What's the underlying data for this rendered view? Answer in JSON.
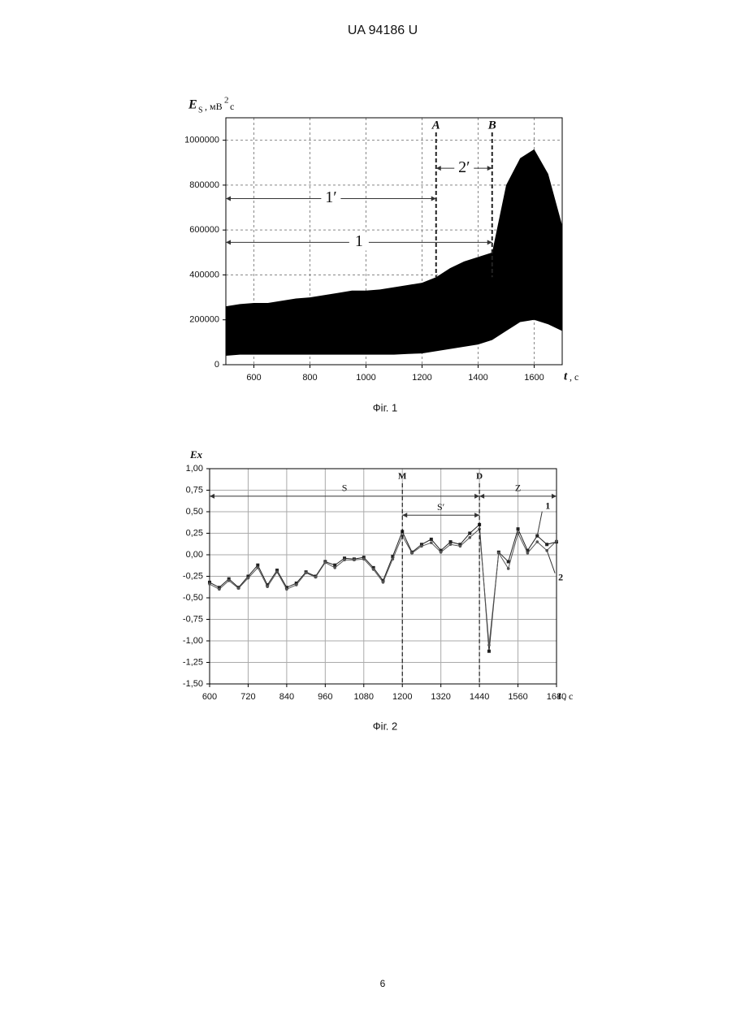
{
  "header": "UA   94186   U",
  "page_number": "6",
  "chart_data": [
    {
      "type": "band",
      "title": "Фіг. 1",
      "ylabel": "E",
      "ylabel_sub": "S",
      "ylabel_unit": ", мВ",
      "ylabel_sup": "2",
      "ylabel_unit2": "с",
      "xlabel": "t",
      "xlabel_unit": ", с",
      "x": [
        500,
        550,
        600,
        650,
        700,
        750,
        800,
        850,
        900,
        950,
        1000,
        1050,
        1100,
        1150,
        1200,
        1250,
        1300,
        1350,
        1400,
        1450,
        1500,
        1550,
        1600,
        1650,
        1700
      ],
      "upper": [
        260000,
        270000,
        275000,
        275000,
        285000,
        295000,
        300000,
        310000,
        320000,
        330000,
        330000,
        335000,
        345000,
        355000,
        365000,
        390000,
        430000,
        460000,
        480000,
        500000,
        800000,
        920000,
        960000,
        850000,
        620000
      ],
      "lower": [
        40000,
        45000,
        45000,
        45000,
        45000,
        45000,
        45000,
        45000,
        45000,
        45000,
        45000,
        45000,
        45000,
        48000,
        50000,
        60000,
        70000,
        80000,
        90000,
        110000,
        150000,
        190000,
        200000,
        180000,
        150000
      ],
      "color": "#000000",
      "xlim": [
        500,
        1700
      ],
      "ylim": [
        0,
        1100000
      ],
      "xticks": [
        600,
        800,
        1000,
        1200,
        1400,
        1600
      ],
      "yticks": [
        0,
        200000,
        400000,
        600000,
        800000,
        1000000
      ],
      "grid": true,
      "vlines": [
        {
          "label": "A",
          "x": 1250
        },
        {
          "label": "B",
          "x": 1450
        }
      ],
      "arrows": [
        {
          "label": "1′",
          "x1": 500,
          "x2": 1250,
          "y": 740000
        },
        {
          "label": "2′",
          "x1": 1250,
          "x2": 1450,
          "y": 875000
        },
        {
          "label": "1",
          "x1": 500,
          "x2": 1450,
          "y": 545000
        }
      ]
    },
    {
      "type": "line",
      "title": "Фіг. 2",
      "ylabel": "Ex",
      "xlabel": "t",
      "xlabel_unit": ", с",
      "x": [
        600,
        630,
        660,
        690,
        720,
        750,
        780,
        810,
        840,
        870,
        900,
        930,
        960,
        990,
        1020,
        1050,
        1080,
        1110,
        1140,
        1170,
        1200,
        1230,
        1260,
        1290,
        1320,
        1350,
        1380,
        1410,
        1440,
        1470,
        1500,
        1530,
        1560,
        1590,
        1620,
        1650,
        1680
      ],
      "series": [
        {
          "name": "1",
          "color": "#222222",
          "values": [
            -0.32,
            -0.38,
            -0.28,
            -0.38,
            -0.25,
            -0.12,
            -0.35,
            -0.18,
            -0.38,
            -0.33,
            -0.2,
            -0.25,
            -0.08,
            -0.12,
            -0.04,
            -0.05,
            -0.03,
            -0.15,
            -0.3,
            -0.02,
            0.27,
            0.03,
            0.12,
            0.18,
            0.05,
            0.15,
            0.12,
            0.25,
            0.35,
            -1.12,
            0.03,
            -0.08,
            0.3,
            0.05,
            0.22,
            0.12,
            0.15
          ]
        },
        {
          "name": "2",
          "color": "#555555",
          "values": [
            -0.34,
            -0.4,
            -0.3,
            -0.39,
            -0.27,
            -0.15,
            -0.37,
            -0.2,
            -0.4,
            -0.35,
            -0.21,
            -0.26,
            -0.09,
            -0.15,
            -0.06,
            -0.06,
            -0.05,
            -0.17,
            -0.32,
            -0.05,
            0.22,
            0.02,
            0.1,
            0.14,
            0.03,
            0.12,
            0.1,
            0.2,
            0.3,
            -1.05,
            0.02,
            -0.16,
            0.25,
            0.02,
            0.15,
            0.05,
            0.16
          ]
        }
      ],
      "xlim": [
        600,
        1680
      ],
      "ylim": [
        -1.5,
        1.0
      ],
      "xticks": [
        600,
        720,
        840,
        960,
        1080,
        1200,
        1320,
        1440,
        1560,
        1680
      ],
      "yticks": [
        {
          "value": 1,
          "label": "1,00"
        },
        {
          "value": 0.75,
          "label": "0,75"
        },
        {
          "value": 0.5,
          "label": "0,50"
        },
        {
          "value": 0.25,
          "label": "0,25"
        },
        {
          "value": 0,
          "label": "0,00"
        },
        {
          "value": -0.25,
          "label": "-0,25"
        },
        {
          "value": -0.5,
          "label": "-0,50"
        },
        {
          "value": -0.75,
          "label": "-0,75"
        },
        {
          "value": -1,
          "label": "-1,00"
        },
        {
          "value": -1.25,
          "label": "-1,25"
        },
        {
          "value": -1.5,
          "label": "-1,50"
        }
      ],
      "grid": true,
      "vlines": [
        {
          "label": "M",
          "x": 1200
        },
        {
          "label": "D",
          "x": 1440
        }
      ],
      "arrows": [
        {
          "label": "S",
          "x1": 600,
          "x2": 1440,
          "y": 0.68
        },
        {
          "label": "Z",
          "x1": 1440,
          "x2": 1680,
          "y": 0.68
        },
        {
          "label": "S′",
          "x1": 1200,
          "x2": 1440,
          "y": 0.46
        }
      ]
    }
  ]
}
